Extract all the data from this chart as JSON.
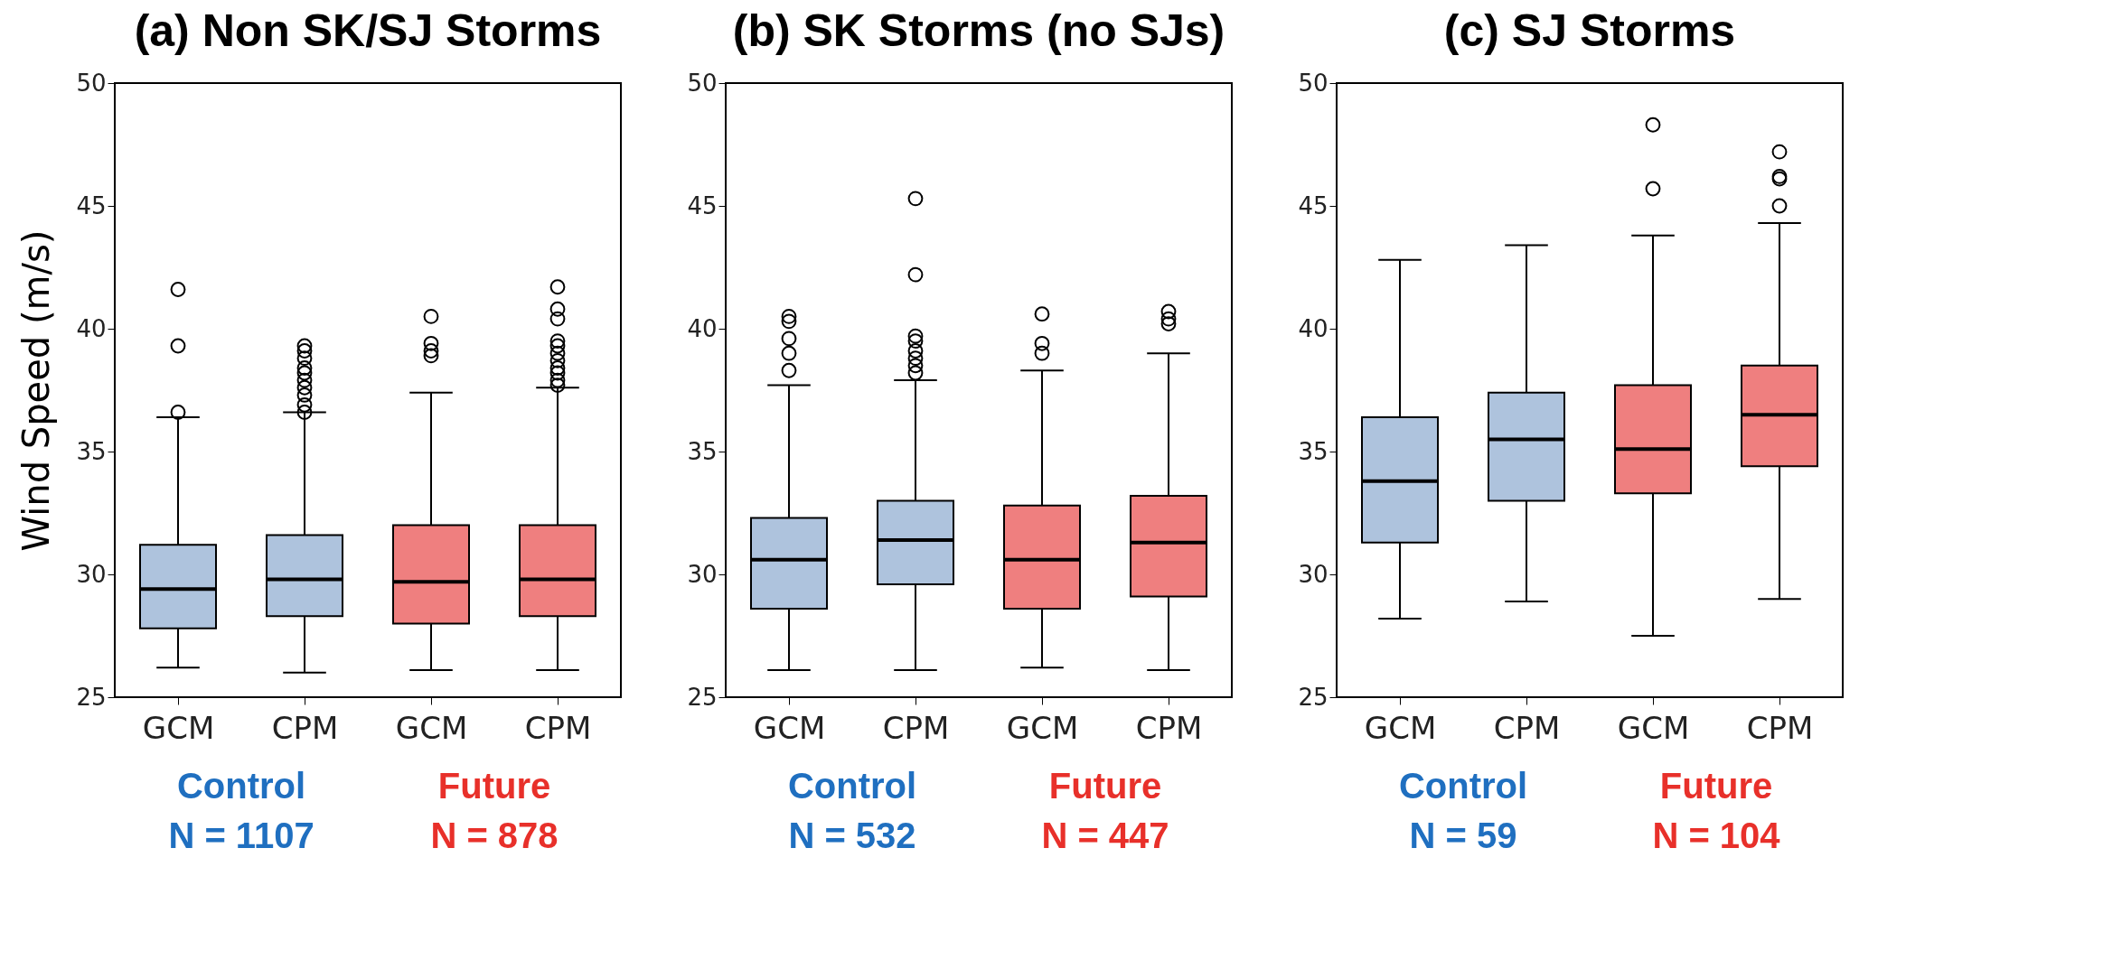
{
  "chart_data": [
    {
      "type": "box",
      "title": "(a) Non SK/SJ Storms",
      "ylabel": "Wind Speed (m/s)",
      "categories": [
        "GCM",
        "CPM",
        "GCM",
        "CPM"
      ],
      "colors": [
        "#aec3dd",
        "#aec3dd",
        "#ef7f7f",
        "#ef7f7f"
      ],
      "ylim": [
        25,
        50
      ],
      "yticks": [
        25,
        30,
        35,
        40,
        45,
        50
      ],
      "grid": false,
      "annotations": [
        "Control",
        "N = 1107",
        "Future",
        "N = 878"
      ],
      "boxes": [
        {
          "low": 26.2,
          "q1": 27.8,
          "median": 29.4,
          "q3": 31.2,
          "high": 36.4,
          "outliers": [
            41.6,
            39.3,
            36.6
          ]
        },
        {
          "low": 26.0,
          "q1": 28.3,
          "median": 29.8,
          "q3": 31.6,
          "high": 36.6,
          "outliers": [
            39.1,
            39.3,
            38.8,
            38.4,
            38.2,
            37.9,
            37.6,
            37.3,
            36.9,
            36.6
          ]
        },
        {
          "low": 26.1,
          "q1": 28.0,
          "median": 29.7,
          "q3": 32.0,
          "high": 37.4,
          "outliers": [
            40.5,
            39.4,
            39.1,
            38.9
          ]
        },
        {
          "low": 26.1,
          "q1": 28.3,
          "median": 29.8,
          "q3": 32.0,
          "high": 37.6,
          "outliers": [
            41.7,
            40.8,
            40.4,
            39.5,
            39.3,
            39.0,
            38.7,
            38.4,
            38.2,
            37.9,
            37.7
          ]
        }
      ]
    },
    {
      "type": "box",
      "title": "(b) SK Storms (no SJs)",
      "categories": [
        "GCM",
        "CPM",
        "GCM",
        "CPM"
      ],
      "colors": [
        "#aec3dd",
        "#aec3dd",
        "#ef7f7f",
        "#ef7f7f"
      ],
      "ylim": [
        25,
        50
      ],
      "yticks": [
        25,
        30,
        35,
        40,
        45,
        50
      ],
      "grid": false,
      "annotations": [
        "Control",
        "N = 532",
        "Future",
        "N = 447"
      ],
      "boxes": [
        {
          "low": 26.1,
          "q1": 28.6,
          "median": 30.6,
          "q3": 32.3,
          "high": 37.7,
          "outliers": [
            40.5,
            40.3,
            39.6,
            39.0,
            38.3
          ]
        },
        {
          "low": 26.1,
          "q1": 29.6,
          "median": 31.4,
          "q3": 33.0,
          "high": 37.9,
          "outliers": [
            45.3,
            42.2,
            39.7,
            39.5,
            39.1,
            38.8,
            38.5,
            38.2
          ]
        },
        {
          "low": 26.2,
          "q1": 28.6,
          "median": 30.6,
          "q3": 32.8,
          "high": 38.3,
          "outliers": [
            40.6,
            39.4,
            39.0
          ]
        },
        {
          "low": 26.1,
          "q1": 29.1,
          "median": 31.3,
          "q3": 33.2,
          "high": 39.0,
          "outliers": [
            40.7,
            40.4,
            40.2
          ]
        }
      ]
    },
    {
      "type": "box",
      "title": "(c) SJ Storms",
      "categories": [
        "GCM",
        "CPM",
        "GCM",
        "CPM"
      ],
      "colors": [
        "#aec3dd",
        "#aec3dd",
        "#ef7f7f",
        "#ef7f7f"
      ],
      "ylim": [
        25,
        50
      ],
      "yticks": [
        25,
        30,
        35,
        40,
        45,
        50
      ],
      "grid": false,
      "annotations": [
        "Control",
        "N = 59",
        "Future",
        "N = 104"
      ],
      "boxes": [
        {
          "low": 28.2,
          "q1": 31.3,
          "median": 33.8,
          "q3": 36.4,
          "high": 42.8
        },
        {
          "low": 28.9,
          "q1": 33.0,
          "median": 35.5,
          "q3": 37.4,
          "high": 43.4
        },
        {
          "low": 27.5,
          "q1": 33.3,
          "median": 35.1,
          "q3": 37.7,
          "high": 43.8,
          "outliers": [
            48.3,
            45.7
          ]
        },
        {
          "low": 29.0,
          "q1": 34.4,
          "median": 36.5,
          "q3": 38.5,
          "high": 44.3,
          "outliers": [
            47.2,
            46.2,
            46.1,
            45.0
          ]
        }
      ]
    }
  ]
}
